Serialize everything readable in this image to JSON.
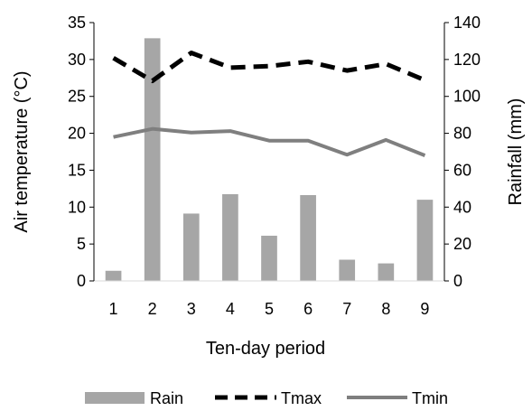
{
  "chart_data": {
    "type": "bar",
    "xlabel": "Ten-day period",
    "ylabel_left": "Air temperature (°C)",
    "ylabel_right": "Rainfall (mm)",
    "categories": [
      "1",
      "2",
      "3",
      "4",
      "5",
      "6",
      "7",
      "8",
      "9"
    ],
    "ylim_left": [
      0,
      35
    ],
    "ylim_right": [
      0,
      140
    ],
    "yticks_left": [
      "0",
      "5",
      "10",
      "15",
      "20",
      "25",
      "30",
      "35"
    ],
    "yticks_right": [
      "0",
      "20",
      "40",
      "60",
      "80",
      "100",
      "120",
      "140"
    ],
    "grid": false,
    "legend_position": "bottom",
    "series": [
      {
        "name": "Rain",
        "type": "bar",
        "axis": "right",
        "color": "#a6a6a6",
        "values": [
          5.5,
          131.5,
          36.5,
          47,
          24.5,
          46.5,
          11.5,
          9.5,
          44
        ]
      },
      {
        "name": "Tmax",
        "type": "line",
        "axis": "left",
        "color": "#000000",
        "dashed": true,
        "values": [
          30.2,
          27.1,
          30.9,
          28.9,
          29.1,
          29.7,
          28.5,
          29.4,
          27.2
        ]
      },
      {
        "name": "Tmin",
        "type": "line",
        "axis": "left",
        "color": "#7f7f7f",
        "dashed": false,
        "values": [
          19.5,
          20.6,
          20.1,
          20.3,
          19.0,
          19.0,
          17.1,
          19.1,
          17.0
        ]
      }
    ]
  }
}
